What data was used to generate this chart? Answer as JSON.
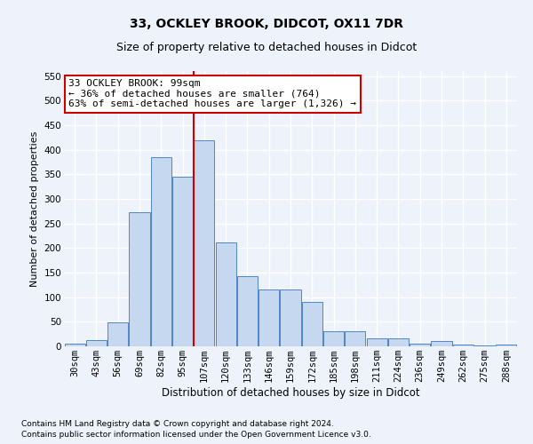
{
  "title": "33, OCKLEY BROOK, DIDCOT, OX11 7DR",
  "subtitle": "Size of property relative to detached houses in Didcot",
  "xlabel": "Distribution of detached houses by size in Didcot",
  "ylabel": "Number of detached properties",
  "categories": [
    "30sqm",
    "43sqm",
    "56sqm",
    "69sqm",
    "82sqm",
    "95sqm",
    "107sqm",
    "120sqm",
    "133sqm",
    "146sqm",
    "159sqm",
    "172sqm",
    "185sqm",
    "198sqm",
    "211sqm",
    "224sqm",
    "236sqm",
    "249sqm",
    "262sqm",
    "275sqm",
    "288sqm"
  ],
  "values": [
    5,
    12,
    49,
    272,
    385,
    345,
    420,
    212,
    143,
    116,
    116,
    90,
    30,
    30,
    17,
    17,
    6,
    11,
    4,
    1,
    3
  ],
  "bar_color": "#c5d8f0",
  "bar_edge_color": "#4e86c8",
  "vline_color": "#cc0000",
  "vline_pos": 5.5,
  "annotation_line1": "33 OCKLEY BROOK: 99sqm",
  "annotation_line2": "← 36% of detached houses are smaller (764)",
  "annotation_line3": "63% of semi-detached houses are larger (1,326) →",
  "annotation_box_color": "#ffffff",
  "annotation_box_edge": "#cc0000",
  "ylim": [
    0,
    560
  ],
  "yticks": [
    0,
    50,
    100,
    150,
    200,
    250,
    300,
    350,
    400,
    450,
    500,
    550
  ],
  "footer1": "Contains HM Land Registry data © Crown copyright and database right 2024.",
  "footer2": "Contains public sector information licensed under the Open Government Licence v3.0.",
  "bg_color": "#eef2fb",
  "grid_color": "#ffffff",
  "title_fontsize": 10,
  "subtitle_fontsize": 9,
  "annotation_fontsize": 8,
  "ylabel_fontsize": 8,
  "xlabel_fontsize": 8.5,
  "tick_fontsize": 7.5,
  "footer_fontsize": 6.5
}
